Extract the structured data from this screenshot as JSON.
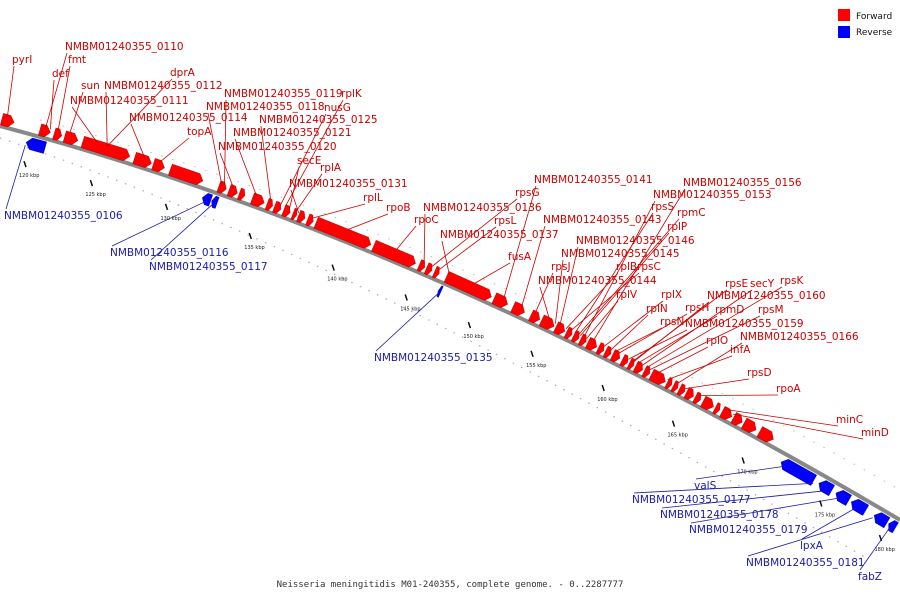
{
  "caption": "Neisseria meningitidis M01-240355, complete genome. - 0..2287777",
  "colors": {
    "forward": "#ff0000",
    "reverse": "#0000ff",
    "backbone": "#888888",
    "forward_label": "#cc0000",
    "reverse_label": "#1a1aaa"
  },
  "legend": [
    {
      "label": "Forward",
      "color": "#ff0000"
    },
    {
      "label": "Reverse",
      "color": "#0000ff"
    }
  ],
  "ticks": [
    "120 kbp",
    "125 kbp",
    "130 kbp",
    "135 kbp",
    "140 kbp",
    "145 kbp",
    "150 kbp",
    "155 kbp",
    "160 kbp",
    "165 kbp",
    "170 kbp",
    "175 kbp",
    "180 kbp"
  ],
  "forward_labels": [
    "pyrI",
    "NMBM01240355_0110",
    "fmt",
    "def",
    "sun",
    "dprA",
    "NMBM01240355_0112",
    "NMBM01240355_0111",
    "NMBM01240355_0114",
    "topA",
    "NMBM01240355_0119",
    "NMBM01240355_0118",
    "rplK",
    "nusG",
    "NMBM01240355_0125",
    "NMBM01240355_0121",
    "NMBM01240355_0120",
    "secE",
    "rplA",
    "NMBM01240355_0131",
    "rplL",
    "rpoB",
    "rpoC",
    "NMBM01240355_0136",
    "rpsG",
    "rpsL",
    "NMBM01240355_0137",
    "fusA",
    "NMBM01240355_0141",
    "NMBM01240355_0143",
    "rpsJ",
    "NMBM01240355_0144",
    "NMBM01240355_0156",
    "NMBM01240355_0153",
    "rpsS",
    "rpmC",
    "rplP",
    "NMBM01240355_0146",
    "NMBM01240355_0145",
    "rpsC",
    "rplB",
    "rplV",
    "rplX",
    "rplN",
    "rpsN",
    "rpsH",
    "rpsE",
    "secY",
    "rpsK",
    "NMBM01240355_0160",
    "rpmD",
    "rpsM",
    "NMBM01240355_0159",
    "rplO",
    "infA",
    "NMBM01240355_0166",
    "rpsD",
    "rpoA",
    "minC",
    "minD"
  ],
  "reverse_labels": [
    "NMBM01240355_0106",
    "NMBM01240355_0116",
    "NMBM01240355_0117",
    "NMBM01240355_0135",
    "valS",
    "NMBM01240355_0177",
    "NMBM01240355_0178",
    "NMBM01240355_0179",
    "lpxA",
    "NMBM01240355_0181",
    "fabZ"
  ]
}
